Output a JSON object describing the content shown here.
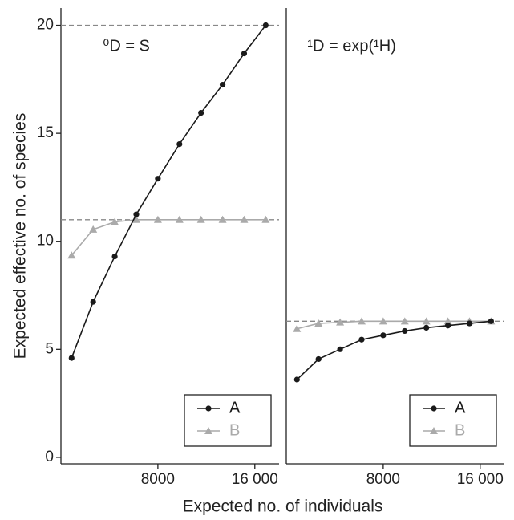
{
  "chart_data": [
    {
      "type": "line",
      "title": "⁰D = S",
      "x_label": "Expected no. of individuals",
      "y_label": "Expected effective no. of species",
      "x": [
        880,
        2660,
        4440,
        6220,
        8000,
        9780,
        11560,
        13340,
        15120,
        16900
      ],
      "series": [
        {
          "name": "A",
          "color": "#1a1a1a",
          "marker": "circle",
          "values": [
            4.6,
            7.2,
            9.3,
            11.25,
            12.9,
            14.5,
            15.95,
            17.25,
            18.7,
            20
          ]
        },
        {
          "name": "B",
          "color": "#aaaaaa",
          "marker": "triangle",
          "values": [
            9.35,
            10.55,
            10.9,
            11.0,
            11.0,
            11.0,
            11.0,
            11.0,
            11.0,
            11.0
          ]
        }
      ],
      "reference_lines": [
        20,
        11
      ],
      "xlim": [
        0,
        18000
      ],
      "ylim": [
        -0.3,
        20.8
      ],
      "xticks": [
        {
          "value": 8000,
          "label": "8000"
        },
        {
          "value": 16000,
          "label": "16 000"
        }
      ],
      "yticks": [
        0,
        5,
        10,
        15,
        20
      ]
    },
    {
      "type": "line",
      "title": "¹D = exp(¹H)",
      "x": [
        880,
        2660,
        4440,
        6220,
        8000,
        9780,
        11560,
        13340,
        15120,
        16900
      ],
      "series": [
        {
          "name": "A",
          "color": "#1a1a1a",
          "marker": "circle",
          "values": [
            3.6,
            4.55,
            5.0,
            5.45,
            5.65,
            5.85,
            6.0,
            6.1,
            6.2,
            6.3
          ]
        },
        {
          "name": "B",
          "color": "#aaaaaa",
          "marker": "triangle",
          "values": [
            5.95,
            6.2,
            6.25,
            6.3,
            6.3,
            6.3,
            6.3,
            6.3,
            6.3,
            6.3
          ]
        }
      ],
      "reference_lines": [
        6.3
      ],
      "xlim": [
        0,
        18000
      ],
      "ylim": [
        -0.3,
        20.8
      ],
      "xticks": [
        {
          "value": 8000,
          "label": "8000"
        },
        {
          "value": 16000,
          "label": "16 000"
        }
      ]
    }
  ]
}
